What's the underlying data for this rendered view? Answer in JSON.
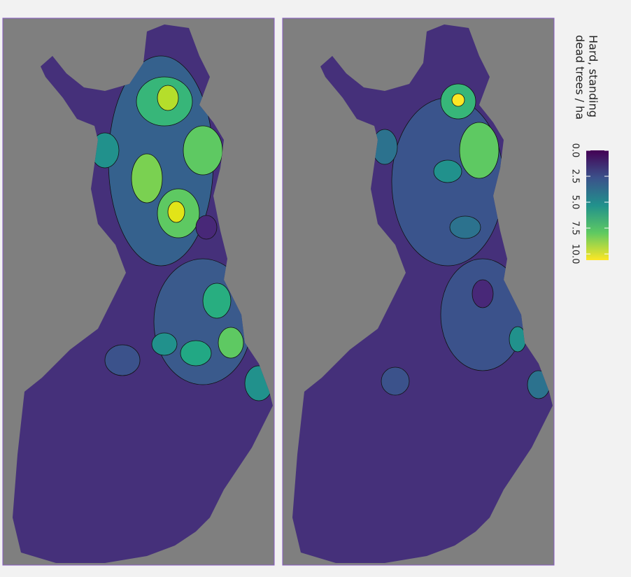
{
  "legend": {
    "title_lines": [
      "Hard, standing",
      "dead trees / ha"
    ],
    "lim": [
      0,
      10.6
    ],
    "ticks": [
      {
        "value": 0,
        "label": "0.0"
      },
      {
        "value": 2.5,
        "label": "2.5"
      },
      {
        "value": 5,
        "label": "5.0"
      },
      {
        "value": 7.5,
        "label": "7.5"
      },
      {
        "value": 10,
        "label": "10.0"
      }
    ]
  }
}
